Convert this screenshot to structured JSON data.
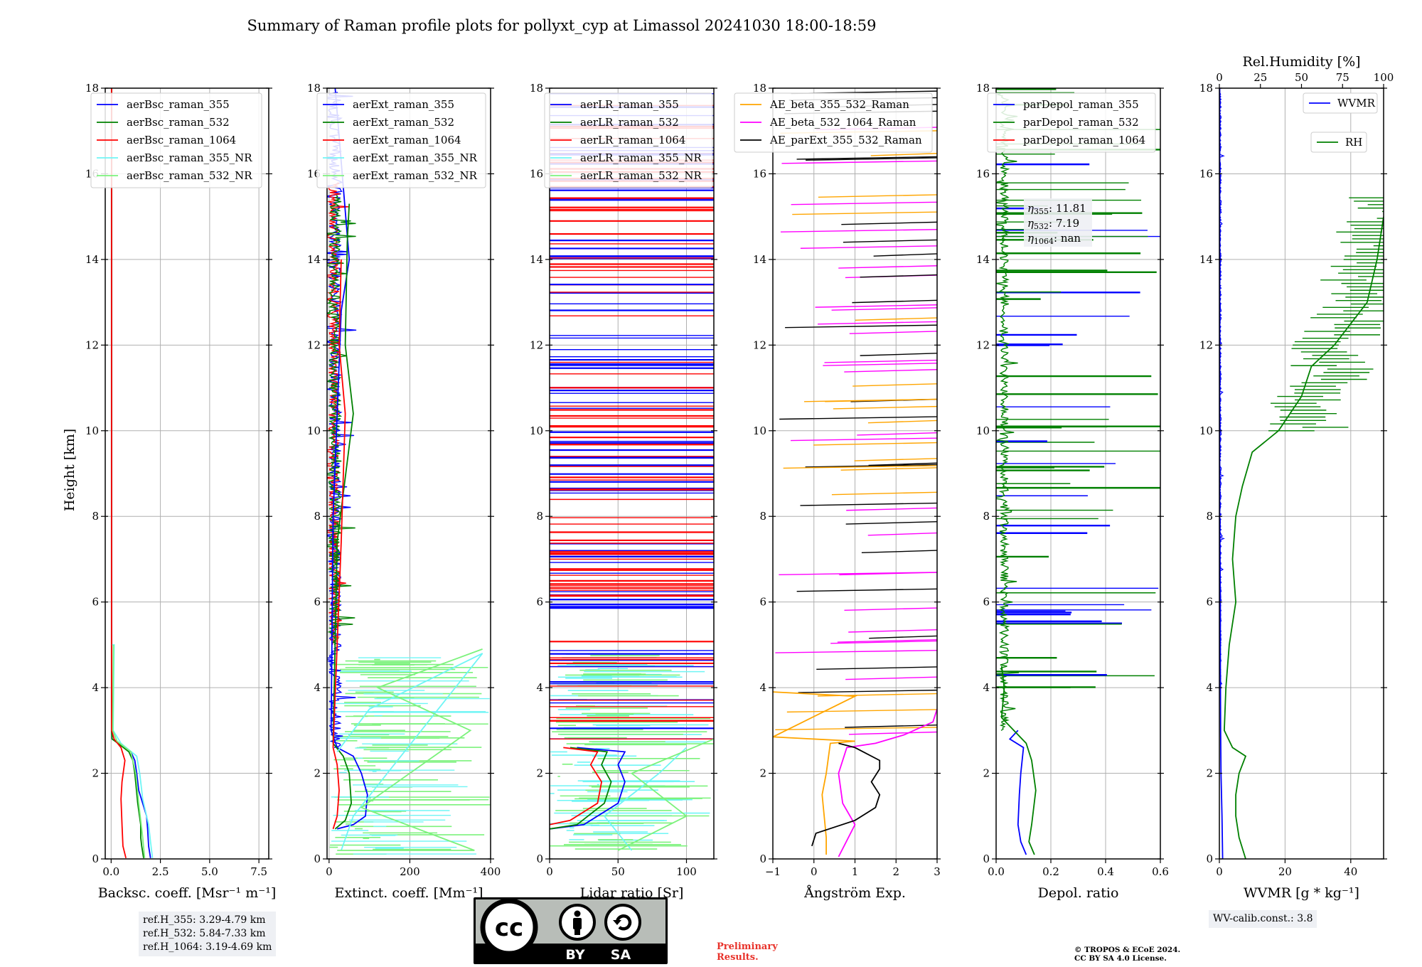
{
  "title": "Summary of Raman profile plots for pollyxt_cyp at Limassol 20241030 18:00-18:59",
  "ylabel": "Height [km]",
  "panels": [
    {
      "xlabel": "Backsc. coeff. [Msr⁻¹ m⁻¹]",
      "ticks": [
        "0.0",
        "2.5",
        "5.0",
        "7.5"
      ],
      "legend": [
        "aerBsc_raman_355",
        "aerBsc_raman_532",
        "aerBsc_raman_1064",
        "aerBsc_raman_355_NR",
        "aerBsc_raman_532_NR"
      ]
    },
    {
      "xlabel": "Extinct. coeff. [Mm⁻¹]",
      "ticks": [
        "0",
        "200",
        "400"
      ],
      "legend": [
        "aerExt_raman_355",
        "aerExt_raman_532",
        "aerExt_raman_1064",
        "aerExt_raman_355_NR",
        "aerExt_raman_532_NR"
      ]
    },
    {
      "xlabel": "Lidar ratio [Sr]",
      "ticks": [
        "0",
        "50",
        "100"
      ],
      "legend": [
        "aerLR_raman_355",
        "aerLR_raman_532",
        "aerLR_raman_1064",
        "aerLR_raman_355_NR",
        "aerLR_raman_532_NR"
      ]
    },
    {
      "xlabel": "Ångström Exp.",
      "ticks": [
        "−1",
        "0",
        "1",
        "2",
        "3"
      ],
      "legend": [
        "AE_beta_355_532_Raman",
        "AE_beta_532_1064_Raman",
        "AE_parExt_355_532_Raman"
      ]
    },
    {
      "xlabel": "Depol. ratio",
      "ticks": [
        "0.0",
        "0.2",
        "0.4",
        "0.6"
      ],
      "legend": [
        "parDepol_raman_355",
        "parDepol_raman_532",
        "parDepol_raman_1064"
      ],
      "annot": [
        [
          "η",
          "355",
          ": 11.81"
        ],
        [
          "η",
          "532",
          ": 7.19"
        ],
        [
          "η",
          "1064",
          ": nan"
        ]
      ]
    },
    {
      "xlabel": "WVMR [g * kg⁻¹]",
      "ticks": [
        "0",
        "20",
        "40"
      ],
      "top_label": "Rel.Humidity [%]",
      "top_ticks": [
        "0",
        "25",
        "50",
        "75",
        "100"
      ],
      "legend": [
        "WVMR",
        "RH"
      ]
    }
  ],
  "yticks": [
    "0",
    "2",
    "4",
    "6",
    "8",
    "10",
    "12",
    "14",
    "16",
    "18"
  ],
  "info": {
    "ref_h": [
      "ref.H_355: 3.29-4.79 km",
      "ref.H_532: 5.84-7.33 km",
      "ref.H_1064: 3.19-4.69 km"
    ],
    "wv_calib": "WV-calib.const.: 3.8",
    "preliminary": [
      "Preliminary",
      "Results."
    ],
    "copyright": [
      "© TROPOS & ECoE 2024.",
      "CC BY SA 4.0 License."
    ],
    "license_badge": {
      "text": [
        "BY",
        "SA"
      ],
      "logo": "cc"
    }
  },
  "colors": {
    "c355": "#0000ff",
    "c532": "#008000",
    "c1064": "#ff0000",
    "c355nr": "#6ff5f5",
    "c532nr": "#7cf27c",
    "orange": "#ffa500",
    "magenta": "#ff00ff",
    "black": "#000000"
  },
  "chart_data": [
    {
      "type": "line",
      "panel": "Backscatter",
      "xlim": [
        -0.3,
        8.0
      ],
      "ylim": [
        0,
        18
      ],
      "y_unit": "km",
      "series": [
        {
          "name": "aerBsc_raman_355",
          "points": [
            [
              2.0,
              0.02
            ],
            [
              1.9,
              0.3
            ],
            [
              1.85,
              0.7
            ],
            [
              1.8,
              1.0
            ],
            [
              1.6,
              1.3
            ],
            [
              1.4,
              1.6
            ],
            [
              1.3,
              2.0
            ],
            [
              1.2,
              2.3
            ],
            [
              1.0,
              2.5
            ],
            [
              0.4,
              2.7
            ],
            [
              0.05,
              2.8
            ],
            [
              0.02,
              3
            ],
            [
              0.03,
              18
            ]
          ]
        },
        {
          "name": "aerBsc_raman_532",
          "points": [
            [
              1.65,
              0.02
            ],
            [
              1.55,
              0.3
            ],
            [
              1.5,
              0.5
            ],
            [
              1.5,
              0.8
            ],
            [
              1.35,
              1.3
            ],
            [
              1.2,
              2.0
            ],
            [
              1.1,
              2.3
            ],
            [
              0.9,
              2.5
            ],
            [
              0.35,
              2.7
            ],
            [
              0.05,
              2.8
            ],
            [
              0.02,
              3
            ],
            [
              0.03,
              18
            ]
          ]
        },
        {
          "name": "aerBsc_raman_1064",
          "points": [
            [
              0.75,
              0.02
            ],
            [
              0.6,
              0.3
            ],
            [
              0.55,
              0.8
            ],
            [
              0.5,
              1.4
            ],
            [
              0.55,
              1.8
            ],
            [
              0.7,
              2.3
            ],
            [
              0.5,
              2.6
            ],
            [
              0.15,
              2.8
            ],
            [
              0.02,
              3
            ],
            [
              0.02,
              18
            ]
          ]
        },
        {
          "name": "aerBsc_raman_355_NR",
          "points": [
            [
              2.1,
              0.02
            ],
            [
              2.0,
              0.4
            ],
            [
              1.9,
              0.8
            ],
            [
              1.6,
              1.4
            ],
            [
              1.45,
              2.0
            ],
            [
              1.3,
              2.4
            ],
            [
              0.5,
              2.7
            ],
            [
              0.1,
              3
            ],
            [
              0.15,
              5.0
            ],
            [
              0.05,
              5.0
            ]
          ]
        },
        {
          "name": "aerBsc_raman_532_NR",
          "points": [
            [
              1.7,
              0.02
            ],
            [
              1.6,
              0.5
            ],
            [
              1.4,
              1.3
            ],
            [
              1.25,
              2.0
            ],
            [
              1.0,
              2.5
            ],
            [
              0.3,
              2.75
            ],
            [
              0.08,
              3
            ],
            [
              0.12,
              5.0
            ]
          ]
        }
      ]
    },
    {
      "type": "line",
      "panel": "Extinction",
      "xlim": [
        -5,
        400
      ],
      "ylim": [
        0,
        18
      ],
      "y_unit": "km",
      "series": [
        {
          "name": "aerExt_raman_355",
          "points": [
            [
              20,
              0.7
            ],
            [
              60,
              0.8
            ],
            [
              90,
              1.0
            ],
            [
              95,
              1.5
            ],
            [
              80,
              2.0
            ],
            [
              60,
              2.4
            ],
            [
              20,
              2.6
            ],
            [
              5,
              3
            ],
            [
              10,
              8
            ],
            [
              30,
              12.8
            ],
            [
              50,
              14
            ],
            [
              15,
              18
            ]
          ]
        },
        {
          "name": "aerExt_raman_532",
          "points": [
            [
              15,
              0.7
            ],
            [
              40,
              0.9
            ],
            [
              55,
              1.3
            ],
            [
              50,
              2.0
            ],
            [
              35,
              2.4
            ],
            [
              10,
              2.7
            ],
            [
              20,
              7.4
            ],
            [
              60,
              10.4
            ],
            [
              40,
              12
            ],
            [
              45,
              14.4
            ],
            [
              50,
              15.3
            ]
          ]
        },
        {
          "name": "aerExt_raman_1064",
          "points": [
            [
              10,
              0.7
            ],
            [
              20,
              1.0
            ],
            [
              25,
              1.6
            ],
            [
              20,
              2.2
            ],
            [
              10,
              2.6
            ],
            [
              30,
              7.4
            ],
            [
              40,
              10.4
            ],
            [
              25,
              12
            ],
            [
              30,
              14
            ]
          ]
        },
        {
          "name": "aerExt_raman_355_NR",
          "points": [
            [
              30,
              0.2
            ],
            [
              60,
              1.0
            ],
            [
              380,
              4.8
            ],
            [
              100,
              3.5
            ],
            [
              20,
              2.5
            ]
          ]
        },
        {
          "name": "aerExt_raman_532_NR",
          "points": [
            [
              20,
              0.2
            ],
            [
              360,
              0.2
            ],
            [
              80,
              1.2
            ],
            [
              350,
              3.0
            ],
            [
              120,
              4.0
            ],
            [
              380,
              4.9
            ]
          ]
        }
      ]
    },
    {
      "type": "line",
      "panel": "Lidar ratio",
      "xlim": [
        0,
        120
      ],
      "ylim": [
        0,
        18
      ],
      "y_unit": "km",
      "series": [
        {
          "name": "aerLR_raman_355",
          "points": [
            [
              0,
              0.7
            ],
            [
              25,
              0.8
            ],
            [
              50,
              1.3
            ],
            [
              55,
              1.8
            ],
            [
              50,
              2.2
            ],
            [
              55,
              2.5
            ],
            [
              20,
              2.6
            ]
          ]
        },
        {
          "name": "aerLR_raman_532",
          "points": [
            [
              0,
              0.7
            ],
            [
              20,
              0.8
            ],
            [
              40,
              1.3
            ],
            [
              45,
              1.8
            ],
            [
              38,
              2.2
            ],
            [
              42,
              2.5
            ],
            [
              15,
              2.6
            ]
          ]
        },
        {
          "name": "aerLR_raman_1064",
          "points": [
            [
              0,
              0.8
            ],
            [
              15,
              0.9
            ],
            [
              35,
              1.3
            ],
            [
              38,
              1.8
            ],
            [
              30,
              2.2
            ],
            [
              35,
              2.5
            ],
            [
              10,
              2.6
            ]
          ]
        },
        {
          "name": "aerLR_raman_355_NR",
          "points": [
            [
              60,
              0.2
            ],
            [
              40,
              1.0
            ],
            [
              80,
              2.0
            ],
            [
              100,
              2.6
            ]
          ]
        },
        {
          "name": "aerLR_raman_532_NR",
          "points": [
            [
              50,
              0.2
            ],
            [
              100,
              1.0
            ],
            [
              60,
              2.0
            ],
            [
              120,
              2.8
            ]
          ]
        }
      ]
    },
    {
      "type": "line",
      "panel": "Ångström",
      "xlim": [
        -1,
        3
      ],
      "ylim": [
        0,
        18
      ],
      "y_unit": "km",
      "series": [
        {
          "name": "AE_beta_355_532_Raman",
          "points": [
            [
              0.3,
              0.1
            ],
            [
              0.3,
              0.5
            ],
            [
              0.25,
              1.0
            ],
            [
              0.2,
              1.5
            ],
            [
              0.3,
              2.0
            ],
            [
              0.4,
              2.7
            ],
            [
              1.0,
              2.75
            ],
            [
              -1,
              2.85
            ],
            [
              1.0,
              3.8
            ],
            [
              -1,
              3.9
            ]
          ]
        },
        {
          "name": "AE_beta_532_1064_Raman",
          "points": [
            [
              0.6,
              0.05
            ],
            [
              1.0,
              0.8
            ],
            [
              0.7,
              1.3
            ],
            [
              0.6,
              2.0
            ],
            [
              0.8,
              2.6
            ],
            [
              1.5,
              2.7
            ],
            [
              2.2,
              2.9
            ],
            [
              2.9,
              3.2
            ],
            [
              3,
              3.5
            ]
          ]
        },
        {
          "name": "AE_parExt_355_532_Raman",
          "points": [
            [
              -0.05,
              0.3
            ],
            [
              0.05,
              0.6
            ],
            [
              1.0,
              0.9
            ],
            [
              1.5,
              1.2
            ],
            [
              1.6,
              1.5
            ],
            [
              1.4,
              1.8
            ],
            [
              1.6,
              2.1
            ],
            [
              1.6,
              2.3
            ],
            [
              1.0,
              2.6
            ],
            [
              0.6,
              2.7
            ]
          ]
        }
      ]
    },
    {
      "type": "line",
      "panel": "Depolarization",
      "xlim": [
        0,
        0.6
      ],
      "ylim": [
        0,
        18
      ],
      "y_unit": "km",
      "series": [
        {
          "name": "parDepol_raman_355",
          "points": [
            [
              0.11,
              0.1
            ],
            [
              0.09,
              0.4
            ],
            [
              0.08,
              0.8
            ],
            [
              0.085,
              1.5
            ],
            [
              0.09,
              2.0
            ],
            [
              0.1,
              2.6
            ],
            [
              0.05,
              2.8
            ],
            [
              0.08,
              3.0
            ]
          ]
        },
        {
          "name": "parDepol_raman_532",
          "points": [
            [
              0.14,
              0.1
            ],
            [
              0.12,
              0.4
            ],
            [
              0.13,
              0.8
            ],
            [
              0.145,
              1.6
            ],
            [
              0.13,
              2.3
            ],
            [
              0.11,
              2.7
            ],
            [
              0.02,
              3.3
            ],
            [
              0.03,
              4.0
            ],
            [
              0.02,
              4.5
            ]
          ]
        },
        {
          "name": "parDepol_raman_1064",
          "points": []
        }
      ]
    },
    {
      "type": "line",
      "panel": "Water vapour",
      "xlim": [
        0,
        50
      ],
      "ylim": [
        0,
        18
      ],
      "y_unit": "km",
      "top_xlim": [
        0,
        100
      ],
      "series": [
        {
          "name": "WVMR",
          "points": [
            [
              1.0,
              0.0
            ],
            [
              0.8,
              1.0
            ],
            [
              0.5,
              2.0
            ],
            [
              0.4,
              3.0
            ],
            [
              0.3,
              4.5
            ],
            [
              0.3,
              6.0
            ],
            [
              0.1,
              8.0
            ],
            [
              0.1,
              18
            ]
          ]
        },
        {
          "name": "RH",
          "points": [
            [
              8,
              0.0
            ],
            [
              6,
              0.5
            ],
            [
              5,
              1.0
            ],
            [
              5,
              1.5
            ],
            [
              6,
              2.0
            ],
            [
              8,
              2.4
            ],
            [
              4,
              2.6
            ],
            [
              1.5,
              3.0
            ],
            [
              2,
              4.0
            ],
            [
              3,
              5.0
            ],
            [
              5,
              6.0
            ],
            [
              4,
              7.0
            ],
            [
              5,
              8.0
            ],
            [
              7,
              8.7
            ],
            [
              10,
              9.5
            ],
            [
              18,
              10.0
            ],
            [
              25,
              10.8
            ],
            [
              28,
              11.5
            ],
            [
              35,
              12.0
            ],
            [
              45,
              13.0
            ],
            [
              48,
              14.0
            ],
            [
              50,
              15.0
            ]
          ]
        }
      ]
    }
  ]
}
